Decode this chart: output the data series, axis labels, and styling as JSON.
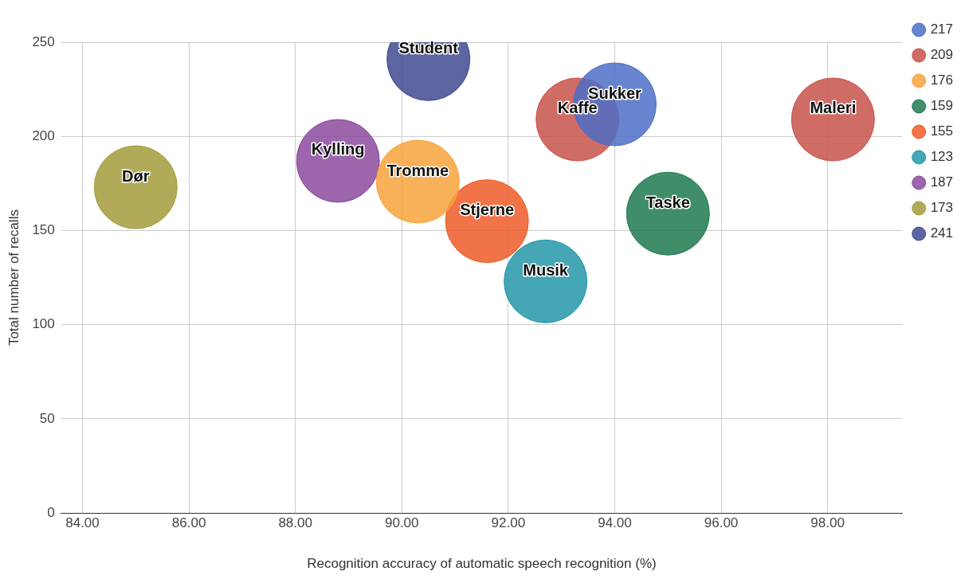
{
  "chart_data": {
    "type": "bubble",
    "xlabel": "Recognition accuracy of automatic speech recognition (%)",
    "ylabel": "Total number of recalls",
    "xlim": [
      83.6,
      99.4
    ],
    "xticks": [
      {
        "value": 84,
        "label": "84.00"
      },
      {
        "value": 86,
        "label": "86.00"
      },
      {
        "value": 88,
        "label": "88.00"
      },
      {
        "value": 90,
        "label": "90.00"
      },
      {
        "value": 92,
        "label": "92.00"
      },
      {
        "value": 94,
        "label": "94.00"
      },
      {
        "value": 96,
        "label": "96.00"
      },
      {
        "value": 98,
        "label": "98.00"
      }
    ],
    "ylim": [
      0,
      250
    ],
    "yticks": [
      0,
      50,
      100,
      150,
      200,
      250
    ],
    "grid": true,
    "legend": "right",
    "series": [
      {
        "name": "217",
        "color": "#4e6fc6",
        "x": [
          94.0
        ],
        "values": [
          217
        ],
        "sizes": [
          1
        ]
      },
      {
        "name": "209",
        "color": "#c8524b",
        "x": [
          93.3,
          98.1
        ],
        "values": [
          209,
          209
        ],
        "sizes": [
          1,
          1
        ]
      },
      {
        "name": "176",
        "color": "#f7a23c",
        "x": [
          90.3
        ],
        "values": [
          176
        ],
        "sizes": [
          1
        ]
      },
      {
        "name": "159",
        "color": "#1f7a4f",
        "x": [
          95.0
        ],
        "values": [
          159
        ],
        "sizes": [
          1
        ]
      },
      {
        "name": "155",
        "color": "#ef5a28",
        "x": [
          91.6
        ],
        "values": [
          155
        ],
        "sizes": [
          1
        ]
      },
      {
        "name": "123",
        "color": "#2496a8",
        "x": [
          92.7
        ],
        "values": [
          123
        ],
        "sizes": [
          1
        ]
      },
      {
        "name": "187",
        "color": "#8b4a9e",
        "x": [
          88.8
        ],
        "values": [
          187
        ],
        "sizes": [
          1
        ]
      },
      {
        "name": "173",
        "color": "#a39c3c",
        "x": [
          85.0
        ],
        "values": [
          173
        ],
        "sizes": [
          1
        ]
      },
      {
        "name": "241",
        "color": "#3f4a8e",
        "x": [
          90.5
        ],
        "values": [
          241
        ],
        "sizes": [
          1
        ]
      }
    ],
    "annotations": [
      {
        "text": "Student",
        "x": 90.5,
        "y": 241
      },
      {
        "text": "Sukker",
        "x": 94.0,
        "y": 217
      },
      {
        "text": "Kaffe",
        "x": 93.3,
        "y": 209
      },
      {
        "text": "Maleri",
        "x": 98.1,
        "y": 209
      },
      {
        "text": "Kylling",
        "x": 88.8,
        "y": 187
      },
      {
        "text": "Tromme",
        "x": 90.3,
        "y": 176
      },
      {
        "text": "Dør",
        "x": 85.0,
        "y": 173
      },
      {
        "text": "Stjerne",
        "x": 91.6,
        "y": 155
      },
      {
        "text": "Taske",
        "x": 95.0,
        "y": 159
      },
      {
        "text": "Musik",
        "x": 92.7,
        "y": 123
      }
    ]
  }
}
